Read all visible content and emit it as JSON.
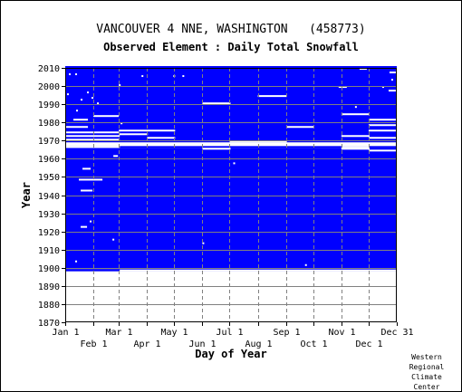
{
  "header": {
    "title": "VANCOUVER 4 NNE, WASHINGTON   (458773)",
    "subtitle": "Observed Element : Daily Total Snowfall"
  },
  "credit": [
    "Western",
    "Regional",
    "Climate",
    "Center"
  ],
  "colors": {
    "data_present": "#0000ff",
    "missing": "#ffffff",
    "grid": "#808080",
    "frame": "#000000"
  },
  "chart_data": {
    "type": "heatmap",
    "title": "VANCOUVER 4 NNE, WASHINGTON   (458773)",
    "subtitle": "Observed Element : Daily Total Snowfall",
    "xlabel": "Day of Year",
    "ylabel": "Year",
    "xlim": [
      1,
      365
    ],
    "ylim": [
      1870,
      2010
    ],
    "x_ticks_upper": [
      {
        "label": "Jan 1",
        "day": 1
      },
      {
        "label": "Mar 1",
        "day": 60
      },
      {
        "label": "May 1",
        "day": 121
      },
      {
        "label": "Jul 1",
        "day": 182
      },
      {
        "label": "Sep 1",
        "day": 244
      },
      {
        "label": "Nov 1",
        "day": 305
      },
      {
        "label": "Dec 31",
        "day": 365
      }
    ],
    "x_ticks_lower": [
      {
        "label": "Feb 1",
        "day": 32
      },
      {
        "label": "Apr 1",
        "day": 91
      },
      {
        "label": "Jun 1",
        "day": 152
      },
      {
        "label": "Aug 1",
        "day": 213
      },
      {
        "label": "Oct 1",
        "day": 274
      },
      {
        "label": "Dec 1",
        "day": 335
      }
    ],
    "y_ticks": [
      1870,
      1880,
      1890,
      1900,
      1910,
      1920,
      1930,
      1940,
      1950,
      1960,
      1970,
      1980,
      1990,
      2000,
      2010
    ],
    "grid": true,
    "legend": "none",
    "encoding": "blue = daily snowfall observed, white = missing",
    "coverage_blocks": [
      {
        "years": [
          1898,
          1898
        ],
        "days": [
          1,
          365
        ]
      },
      {
        "years": [
          1899,
          1965
        ],
        "days": [
          1,
          365
        ]
      },
      {
        "years": [
          1966,
          1966
        ],
        "days": [
          61,
          365
        ]
      },
      {
        "years": [
          1967,
          1968
        ],
        "days": [
          1,
          365
        ]
      },
      {
        "years": [
          1969,
          2009
        ],
        "days": [
          1,
          365
        ]
      },
      {
        "years": [
          2010,
          2010
        ],
        "days": [
          1,
          365
        ]
      }
    ],
    "missing_gaps": [
      {
        "years": [
          1897,
          1897
        ],
        "days": [
          1,
          365
        ]
      },
      {
        "years": [
          1898,
          1898
        ],
        "days": [
          61,
          365
        ]
      },
      {
        "years": [
          1966,
          1966
        ],
        "days": [
          1,
          60
        ]
      },
      {
        "years": [
          1966,
          1966
        ],
        "days": [
          305,
          335
        ]
      },
      {
        "years": [
          1967,
          1968
        ],
        "days": [
          1,
          365
        ]
      },
      {
        "years": [
          1969,
          1969
        ],
        "days": [
          182,
          244
        ]
      },
      {
        "years": [
          1964,
          1964
        ],
        "days": [
          335,
          365
        ]
      },
      {
        "years": [
          1965,
          1965
        ],
        "days": [
          152,
          182
        ]
      },
      {
        "years": [
          1965,
          1965
        ],
        "days": [
          305,
          335
        ]
      },
      {
        "years": [
          1970,
          1970
        ],
        "days": [
          1,
          60
        ]
      },
      {
        "years": [
          1971,
          1971
        ],
        "days": [
          91,
          121
        ]
      },
      {
        "years": [
          1971,
          1971
        ],
        "days": [
          335,
          365
        ]
      },
      {
        "years": [
          1972,
          1972
        ],
        "days": [
          1,
          60
        ]
      },
      {
        "years": [
          1972,
          1972
        ],
        "days": [
          305,
          335
        ]
      },
      {
        "years": [
          1973,
          1973
        ],
        "days": [
          60,
          91
        ]
      },
      {
        "years": [
          1974,
          1974
        ],
        "days": [
          1,
          60
        ]
      },
      {
        "years": [
          1975,
          1975
        ],
        "days": [
          60,
          121
        ]
      },
      {
        "years": [
          1975,
          1975
        ],
        "days": [
          335,
          365
        ]
      },
      {
        "years": [
          1977,
          1977
        ],
        "days": [
          1,
          25
        ]
      },
      {
        "years": [
          1977,
          1977
        ],
        "days": [
          245,
          274
        ]
      },
      {
        "years": [
          1978,
          1978
        ],
        "days": [
          335,
          365
        ]
      },
      {
        "years": [
          1981,
          1981
        ],
        "days": [
          10,
          25
        ]
      },
      {
        "years": [
          1981,
          1981
        ],
        "days": [
          335,
          365
        ]
      },
      {
        "years": [
          1983,
          1983
        ],
        "days": [
          32,
          59
        ]
      },
      {
        "years": [
          1984,
          1984
        ],
        "days": [
          305,
          335
        ]
      },
      {
        "years": [
          1990,
          1990
        ],
        "days": [
          152,
          182
        ]
      },
      {
        "years": [
          1994,
          1994
        ],
        "days": [
          213,
          244
        ]
      },
      {
        "years": [
          1954,
          1954
        ],
        "days": [
          20,
          28
        ]
      },
      {
        "years": [
          1948,
          1948
        ],
        "days": [
          16,
          41
        ]
      },
      {
        "years": [
          1942,
          1942
        ],
        "days": [
          18,
          30
        ]
      },
      {
        "years": [
          1922,
          1922
        ],
        "days": [
          18,
          24
        ]
      },
      {
        "years": [
          1961,
          1961
        ],
        "days": [
          54,
          58
        ]
      },
      {
        "years": [
          1999,
          1999
        ],
        "days": [
          302,
          310
        ]
      },
      {
        "years": [
          2007,
          2007
        ],
        "days": [
          358,
          365
        ]
      },
      {
        "years": [
          2009,
          2009
        ],
        "days": [
          325,
          332
        ]
      },
      {
        "years": [
          1997,
          1997
        ],
        "days": [
          357,
          365
        ]
      }
    ],
    "isolated_missing_points": [
      {
        "year": 2006,
        "day": 5
      },
      {
        "year": 2006,
        "day": 12
      },
      {
        "year": 2005,
        "day": 85
      },
      {
        "year": 2005,
        "day": 120
      },
      {
        "year": 2005,
        "day": 130
      },
      {
        "year": 2000,
        "day": 60
      },
      {
        "year": 1996,
        "day": 25
      },
      {
        "year": 1995,
        "day": 3
      },
      {
        "year": 1993,
        "day": 30
      },
      {
        "year": 1992,
        "day": 18
      },
      {
        "year": 1988,
        "day": 320
      },
      {
        "year": 1986,
        "day": 13
      },
      {
        "year": 1979,
        "day": 62
      },
      {
        "year": 1957,
        "day": 186
      },
      {
        "year": 1925,
        "day": 28
      },
      {
        "year": 1915,
        "day": 53
      },
      {
        "year": 1913,
        "day": 152
      },
      {
        "year": 1903,
        "day": 12
      },
      {
        "year": 1901,
        "day": 265
      },
      {
        "year": 1999,
        "day": 350
      },
      {
        "year": 2003,
        "day": 360
      },
      {
        "year": 1990,
        "day": 36
      }
    ]
  }
}
